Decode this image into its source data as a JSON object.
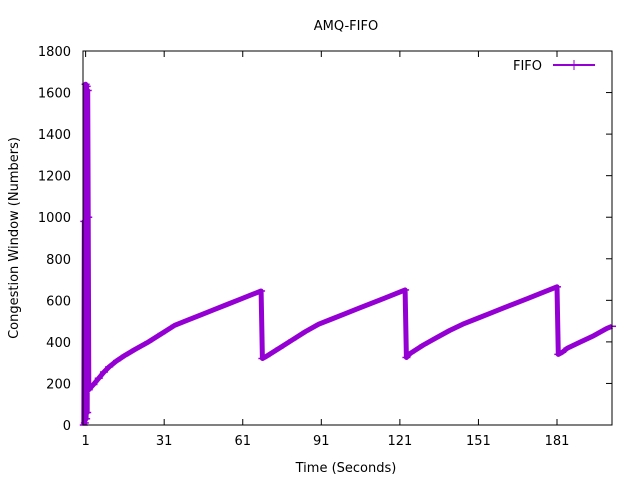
{
  "chart_data": {
    "type": "line",
    "title": "AMQ-FIFO",
    "xlabel": "Time (Seconds)",
    "ylabel": "Congestion Window (Numbers)",
    "xlim": [
      0,
      202
    ],
    "ylim": [
      0,
      1800
    ],
    "xticks": [
      1,
      31,
      61,
      91,
      121,
      151,
      181
    ],
    "yticks": [
      0,
      200,
      400,
      600,
      800,
      1000,
      1200,
      1400,
      1600,
      1800
    ],
    "grid": false,
    "legend_position": "top-right",
    "series": [
      {
        "name": "FIFO",
        "color": "#9400d3",
        "points": [
          [
            0.3,
            0
          ],
          [
            0.5,
            980
          ],
          [
            0.7,
            10
          ],
          [
            1.0,
            1640
          ],
          [
            1.2,
            30
          ],
          [
            1.4,
            1630
          ],
          [
            1.6,
            60
          ],
          [
            1.8,
            1610
          ],
          [
            2.0,
            1000
          ],
          [
            2.2,
            170
          ],
          [
            4,
            195
          ],
          [
            6,
            225
          ],
          [
            8,
            255
          ],
          [
            10,
            280
          ],
          [
            13,
            310
          ],
          [
            16,
            335
          ],
          [
            20,
            365
          ],
          [
            25,
            400
          ],
          [
            30,
            440
          ],
          [
            35,
            480
          ],
          [
            40,
            505
          ],
          [
            45,
            530
          ],
          [
            50,
            555
          ],
          [
            55,
            580
          ],
          [
            60,
            605
          ],
          [
            65,
            630
          ],
          [
            68,
            645
          ],
          [
            68.5,
            320
          ],
          [
            70,
            330
          ],
          [
            75,
            370
          ],
          [
            80,
            410
          ],
          [
            85,
            450
          ],
          [
            90,
            485
          ],
          [
            95,
            510
          ],
          [
            100,
            535
          ],
          [
            105,
            560
          ],
          [
            110,
            585
          ],
          [
            115,
            610
          ],
          [
            120,
            635
          ],
          [
            123,
            650
          ],
          [
            123.5,
            325
          ],
          [
            125,
            345
          ],
          [
            130,
            385
          ],
          [
            135,
            420
          ],
          [
            140,
            455
          ],
          [
            145,
            485
          ],
          [
            150,
            510
          ],
          [
            155,
            535
          ],
          [
            160,
            560
          ],
          [
            165,
            585
          ],
          [
            170,
            610
          ],
          [
            175,
            635
          ],
          [
            181,
            665
          ],
          [
            181.5,
            340
          ],
          [
            183,
            350
          ],
          [
            185,
            370
          ],
          [
            190,
            400
          ],
          [
            195,
            430
          ],
          [
            200,
            465
          ],
          [
            202,
            475
          ]
        ]
      }
    ]
  }
}
